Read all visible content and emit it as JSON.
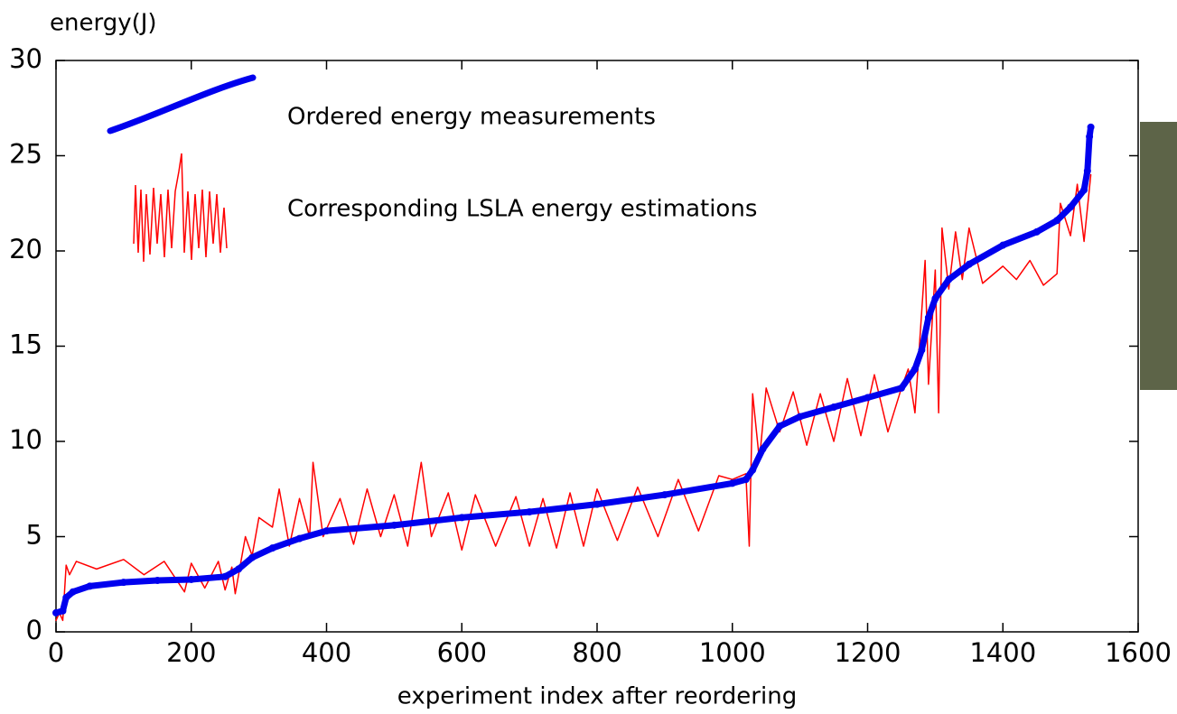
{
  "chart_data": {
    "type": "line",
    "x_label": "experiment index after reordering",
    "y_label": "energy(J)",
    "xlim": [
      0,
      1600
    ],
    "xticks": [
      0,
      200,
      400,
      600,
      800,
      1000,
      1200,
      1400,
      1600
    ],
    "ylim": [
      0,
      30
    ],
    "yticks": [
      0,
      5,
      10,
      15,
      20,
      25,
      30
    ],
    "legend": "upper left",
    "series": [
      {
        "name": "Ordered energy measurements",
        "color": "#0000ee",
        "style": "dots",
        "x": [
          0,
          10,
          15,
          25,
          50,
          100,
          150,
          200,
          250,
          270,
          290,
          320,
          360,
          400,
          500,
          600,
          700,
          800,
          900,
          1000,
          1020,
          1030,
          1045,
          1070,
          1100,
          1150,
          1200,
          1250,
          1270,
          1280,
          1290,
          1300,
          1320,
          1350,
          1400,
          1450,
          1480,
          1500,
          1520,
          1525,
          1528,
          1530
        ],
        "values": [
          1.0,
          1.1,
          1.8,
          2.1,
          2.4,
          2.6,
          2.7,
          2.75,
          2.9,
          3.3,
          3.9,
          4.4,
          4.9,
          5.3,
          5.6,
          6.0,
          6.3,
          6.7,
          7.2,
          7.8,
          8.0,
          8.5,
          9.6,
          10.8,
          11.3,
          11.8,
          12.3,
          12.8,
          13.8,
          14.8,
          16.5,
          17.5,
          18.5,
          19.3,
          20.3,
          21.0,
          21.6,
          22.3,
          23.2,
          24.2,
          26.0,
          26.5
        ]
      },
      {
        "name": "Corresponding LSLA energy estimations",
        "color": "#ff0000",
        "style": "line",
        "x": [
          0,
          5,
          10,
          15,
          20,
          30,
          60,
          100,
          130,
          160,
          190,
          200,
          220,
          240,
          250,
          260,
          265,
          270,
          280,
          290,
          300,
          320,
          330,
          345,
          360,
          375,
          380,
          395,
          420,
          440,
          460,
          480,
          500,
          520,
          540,
          555,
          580,
          600,
          620,
          650,
          680,
          700,
          720,
          740,
          760,
          780,
          800,
          830,
          860,
          890,
          920,
          950,
          980,
          1000,
          1020,
          1025,
          1030,
          1040,
          1050,
          1070,
          1090,
          1110,
          1130,
          1150,
          1170,
          1190,
          1210,
          1230,
          1250,
          1260,
          1270,
          1285,
          1290,
          1300,
          1305,
          1310,
          1320,
          1330,
          1340,
          1350,
          1370,
          1400,
          1420,
          1440,
          1460,
          1480,
          1485,
          1500,
          1510,
          1520,
          1530
        ],
        "values": [
          0.6,
          1.0,
          0.6,
          3.5,
          3.0,
          3.7,
          3.3,
          3.8,
          3.0,
          3.7,
          2.1,
          3.6,
          2.3,
          3.7,
          2.2,
          3.4,
          2.0,
          3.0,
          5.0,
          4.0,
          6.0,
          5.5,
          7.5,
          4.5,
          7.0,
          5.0,
          8.9,
          5.0,
          7.0,
          4.6,
          7.5,
          5.0,
          7.2,
          4.5,
          8.9,
          5.0,
          7.3,
          4.3,
          7.2,
          4.5,
          7.1,
          4.5,
          7.0,
          4.4,
          7.3,
          4.5,
          7.5,
          4.8,
          7.6,
          5.0,
          8.0,
          5.3,
          8.2,
          8.0,
          8.3,
          4.5,
          12.5,
          9.0,
          12.8,
          10.5,
          12.6,
          9.8,
          12.5,
          10.0,
          13.3,
          10.3,
          13.5,
          10.5,
          12.8,
          13.8,
          11.5,
          19.5,
          13.0,
          19.0,
          11.5,
          21.2,
          18.0,
          21.0,
          18.5,
          21.2,
          18.3,
          19.2,
          18.5,
          19.5,
          18.2,
          18.8,
          22.5,
          20.8,
          23.5,
          20.5,
          24.0
        ]
      }
    ]
  }
}
